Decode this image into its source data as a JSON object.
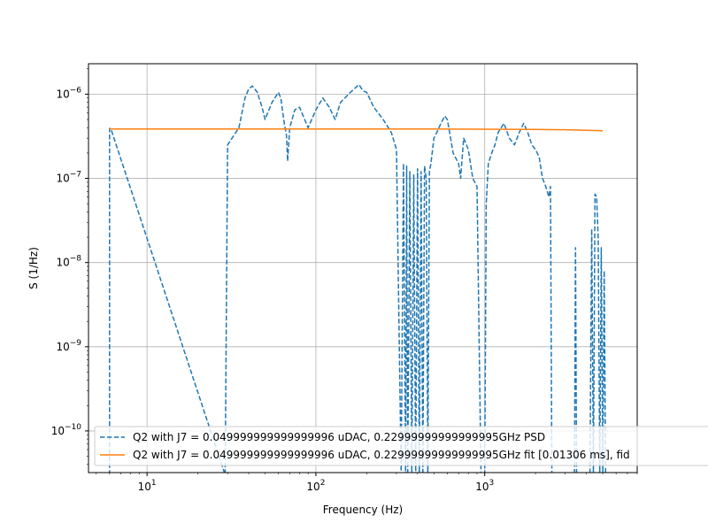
{
  "chart_data": {
    "type": "line",
    "title": "",
    "xlabel": "Frequency (Hz)",
    "ylabel": "S (1/Hz)",
    "x_scale": "log",
    "y_scale": "log",
    "xlim": [
      4.5,
      8000
    ],
    "ylim": [
      3.2e-11,
      2.3e-06
    ],
    "grid": true,
    "legend_position": "lower-left",
    "x_ticks": [
      {
        "value": 10,
        "label_base": "10",
        "label_exp": "1"
      },
      {
        "value": 100,
        "label_base": "10",
        "label_exp": "2"
      },
      {
        "value": 1000,
        "label_base": "10",
        "label_exp": "3"
      }
    ],
    "y_ticks": [
      {
        "value": 1e-10,
        "label_base": "10",
        "label_exp": "−10"
      },
      {
        "value": 1e-09,
        "label_base": "10",
        "label_exp": "−9"
      },
      {
        "value": 1e-08,
        "label_base": "10",
        "label_exp": "−8"
      },
      {
        "value": 1e-07,
        "label_base": "10",
        "label_exp": "−7"
      },
      {
        "value": 1e-06,
        "label_base": "10",
        "label_exp": "−6"
      }
    ],
    "series": [
      {
        "name": "Q2 with J7 = 0.049999999999999996 uDAC, 0.22999999999999995GHz PSD",
        "color": "#1f77b4",
        "style": "dashed",
        "x": [
          6,
          6,
          6.1,
          29,
          30,
          30,
          35,
          38,
          40,
          42,
          45,
          48,
          50,
          55,
          60,
          62,
          65,
          67,
          68,
          70,
          75,
          80,
          90,
          100,
          110,
          120,
          130,
          140,
          160,
          180,
          190,
          200,
          220,
          250,
          280,
          300,
          320,
          330,
          340,
          345,
          350,
          360,
          370,
          380,
          390,
          400,
          410,
          420,
          430,
          440,
          450,
          460,
          470,
          480,
          500,
          520,
          550,
          580,
          600,
          620,
          650,
          700,
          720,
          750,
          780,
          800,
          850,
          900,
          950,
          1000,
          1020,
          1050,
          1100,
          1150,
          1200,
          1300,
          1400,
          1500,
          1600,
          1700,
          1800,
          1900,
          2000,
          2100,
          2200,
          2300,
          2400,
          2450,
          2500,
          2550,
          3400,
          3450,
          3500,
          3550,
          4200,
          4300,
          4400,
          4500,
          4600,
          4700,
          4800,
          4900,
          5000,
          5100,
          5200
        ],
        "y": [
          3e-11,
          3.9e-07,
          3.9e-07,
          3e-11,
          2.5e-07,
          2.5e-07,
          4e-07,
          9e-07,
          1.15e-06,
          1.25e-06,
          1.05e-06,
          7e-07,
          5e-07,
          8e-07,
          1.05e-06,
          9e-07,
          4.5e-07,
          3.2e-07,
          1.6e-07,
          4e-07,
          6.5e-07,
          7e-07,
          4e-07,
          6.5e-07,
          9e-07,
          7e-07,
          5e-07,
          8e-07,
          1.05e-06,
          1.3e-06,
          1.1e-06,
          1.05e-06,
          7e-07,
          5e-07,
          3.5e-07,
          2.2e-07,
          3e-11,
          1.5e-07,
          3e-11,
          1.4e-07,
          3e-11,
          1.2e-07,
          3e-11,
          1.1e-07,
          3e-11,
          1.3e-07,
          3e-11,
          1.2e-07,
          3e-11,
          1.4e-07,
          1e-07,
          3e-11,
          1.2e-07,
          1.5e-07,
          3e-07,
          3.5e-07,
          4.5e-07,
          5.5e-07,
          5e-07,
          3.5e-07,
          2e-07,
          1.5e-07,
          1e-07,
          3e-07,
          2.5e-07,
          2.2e-07,
          1e-07,
          8e-08,
          3e-11,
          3e-11,
          5e-08,
          1.5e-07,
          2e-07,
          2.5e-07,
          3.5e-07,
          4.5e-07,
          3e-07,
          2.5e-07,
          3.5e-07,
          4.5e-07,
          3.5e-07,
          2.5e-07,
          2.2e-07,
          1.8e-07,
          1e-07,
          8e-08,
          6e-08,
          8e-08,
          3e-11,
          3e-11,
          3e-11,
          1.5e-08,
          3e-11,
          3e-11,
          3e-11,
          2.5e-08,
          3e-11,
          6.5e-08,
          6e-08,
          2e-08,
          3e-11,
          1.5e-08,
          3e-11,
          8e-09,
          3e-11
        ]
      },
      {
        "name": "Q2 with J7 = 0.049999999999999996 uDAC, 0.22999999999999995GHz fit [0.01306 ms], fid",
        "color": "#ff7f0e",
        "style": "solid",
        "x": [
          6,
          10,
          100,
          500,
          1000,
          2000,
          3000,
          4000,
          5000
        ],
        "y": [
          3.85e-07,
          3.85e-07,
          3.85e-07,
          3.85e-07,
          3.84e-07,
          3.82e-07,
          3.78e-07,
          3.72e-07,
          3.68e-07
        ]
      }
    ]
  }
}
